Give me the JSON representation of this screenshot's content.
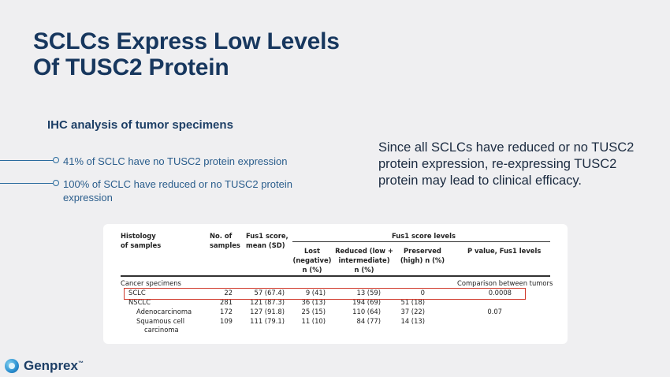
{
  "slide": {
    "title_line1": "SCLCs Express Low Levels",
    "title_line2": "Of TUSC2 Protein",
    "subheading": "IHC analysis of tumor specimens",
    "bullets": [
      "41% of SCLC have no TUSC2 protein expression",
      "100% of SCLC have reduced or no TUSC2 protein expression"
    ],
    "side_text": "Since all SCLCs have reduced or no TUSC2 protein expression, re-expressing TUSC2 protein may lead to clinical efficacy.",
    "logo": {
      "brand": "Genprex",
      "trademark": "™",
      "accent_color": "#2a8fd0"
    }
  },
  "table": {
    "header": {
      "histology_1": "Histology",
      "histology_2": "of samples",
      "no_of_1": "No. of",
      "no_of_2": "samples",
      "fus1_1": "Fus1 score,",
      "fus1_2": "mean (SD)",
      "levels": "Fus1 score levels",
      "lost_1": "Lost",
      "lost_2": "(negative)",
      "lost_3": "n (%)",
      "reduced_1": "Reduced (low +",
      "reduced_2": "intermediate)",
      "reduced_3": "n (%)",
      "preserved_1": "Preserved",
      "preserved_2": "(high) n (%)",
      "pvalue": "P value, Fus1 levels"
    },
    "section_label": "Cancer specimens",
    "section_note": "Comparison between tumors",
    "rows": [
      {
        "name": "SCLC",
        "n": "22",
        "score": "57 (67.4)",
        "lost": "9 (41)",
        "reduced": "13 (59)",
        "preserved": "0",
        "p": "0.0008"
      },
      {
        "name": "NSCLC",
        "n": "281",
        "score": "121 (87.3)",
        "lost": "36 (13)",
        "reduced": "194 (69)",
        "preserved": "51 (18)",
        "p": ""
      },
      {
        "name": "Adenocarcinoma",
        "n": "172",
        "score": "127 (91.8)",
        "lost": "25 (15)",
        "reduced": "110 (64)",
        "preserved": "37 (22)",
        "p": "0.07"
      },
      {
        "name": "Squamous cell",
        "name2": "carcinoma",
        "n": "109",
        "score": "111 (79.1)",
        "lost": "11 (10)",
        "reduced": "84 (77)",
        "preserved": "14 (13)",
        "p": ""
      }
    ],
    "highlight_color": "#d0392b"
  }
}
